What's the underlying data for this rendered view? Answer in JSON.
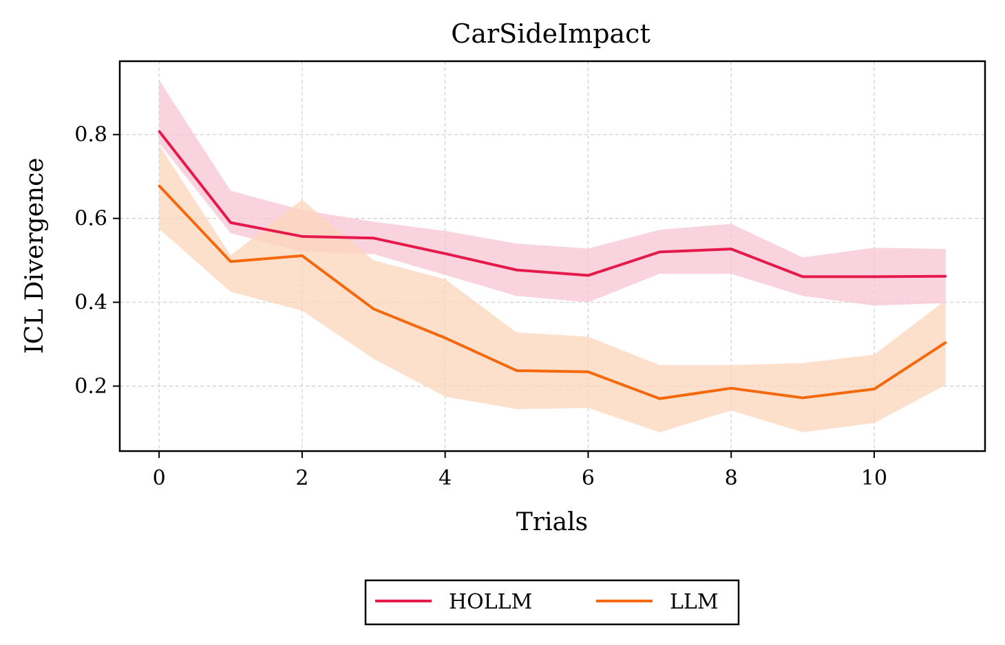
{
  "chart_data": {
    "type": "line",
    "title": "CarSideImpact",
    "xlabel": "Trials",
    "ylabel": "ICL Divergence",
    "xlim": [
      -0.55,
      11.55
    ],
    "ylim": [
      0.045,
      0.975
    ],
    "xticks": [
      0,
      2,
      4,
      6,
      8,
      10
    ],
    "xtick_labels": [
      "0",
      "2",
      "4",
      "6",
      "8",
      "10"
    ],
    "yticks": [
      0.2,
      0.4,
      0.6,
      0.8
    ],
    "ytick_labels": [
      "0.2",
      "0.4",
      "0.6",
      "0.8"
    ],
    "grid": true,
    "legend_position": "below",
    "x": [
      0,
      1,
      2,
      3,
      4,
      5,
      6,
      7,
      8,
      9,
      10,
      11
    ],
    "series": [
      {
        "name": "HOLLM",
        "color": "#e6194b",
        "band_color": "#f7c5d3",
        "values": [
          0.808,
          0.59,
          0.557,
          0.553,
          0.516,
          0.477,
          0.464,
          0.52,
          0.527,
          0.461,
          0.461,
          0.462
        ],
        "lower": [
          0.78,
          0.565,
          0.52,
          0.515,
          0.465,
          0.415,
          0.4,
          0.468,
          0.468,
          0.415,
          0.392,
          0.398
        ],
        "upper": [
          0.93,
          0.666,
          0.62,
          0.592,
          0.57,
          0.54,
          0.528,
          0.573,
          0.587,
          0.507,
          0.53,
          0.527
        ]
      },
      {
        "name": "LLM",
        "color": "#f5690c",
        "band_color": "#fcd5bb",
        "values": [
          0.678,
          0.497,
          0.511,
          0.384,
          0.315,
          0.237,
          0.234,
          0.17,
          0.195,
          0.172,
          0.193,
          0.304
        ],
        "lower": [
          0.575,
          0.425,
          0.38,
          0.265,
          0.175,
          0.145,
          0.148,
          0.09,
          0.142,
          0.09,
          0.112,
          0.203
        ],
        "upper": [
          0.775,
          0.512,
          0.645,
          0.5,
          0.455,
          0.328,
          0.318,
          0.25,
          0.25,
          0.255,
          0.275,
          0.405
        ]
      }
    ]
  }
}
